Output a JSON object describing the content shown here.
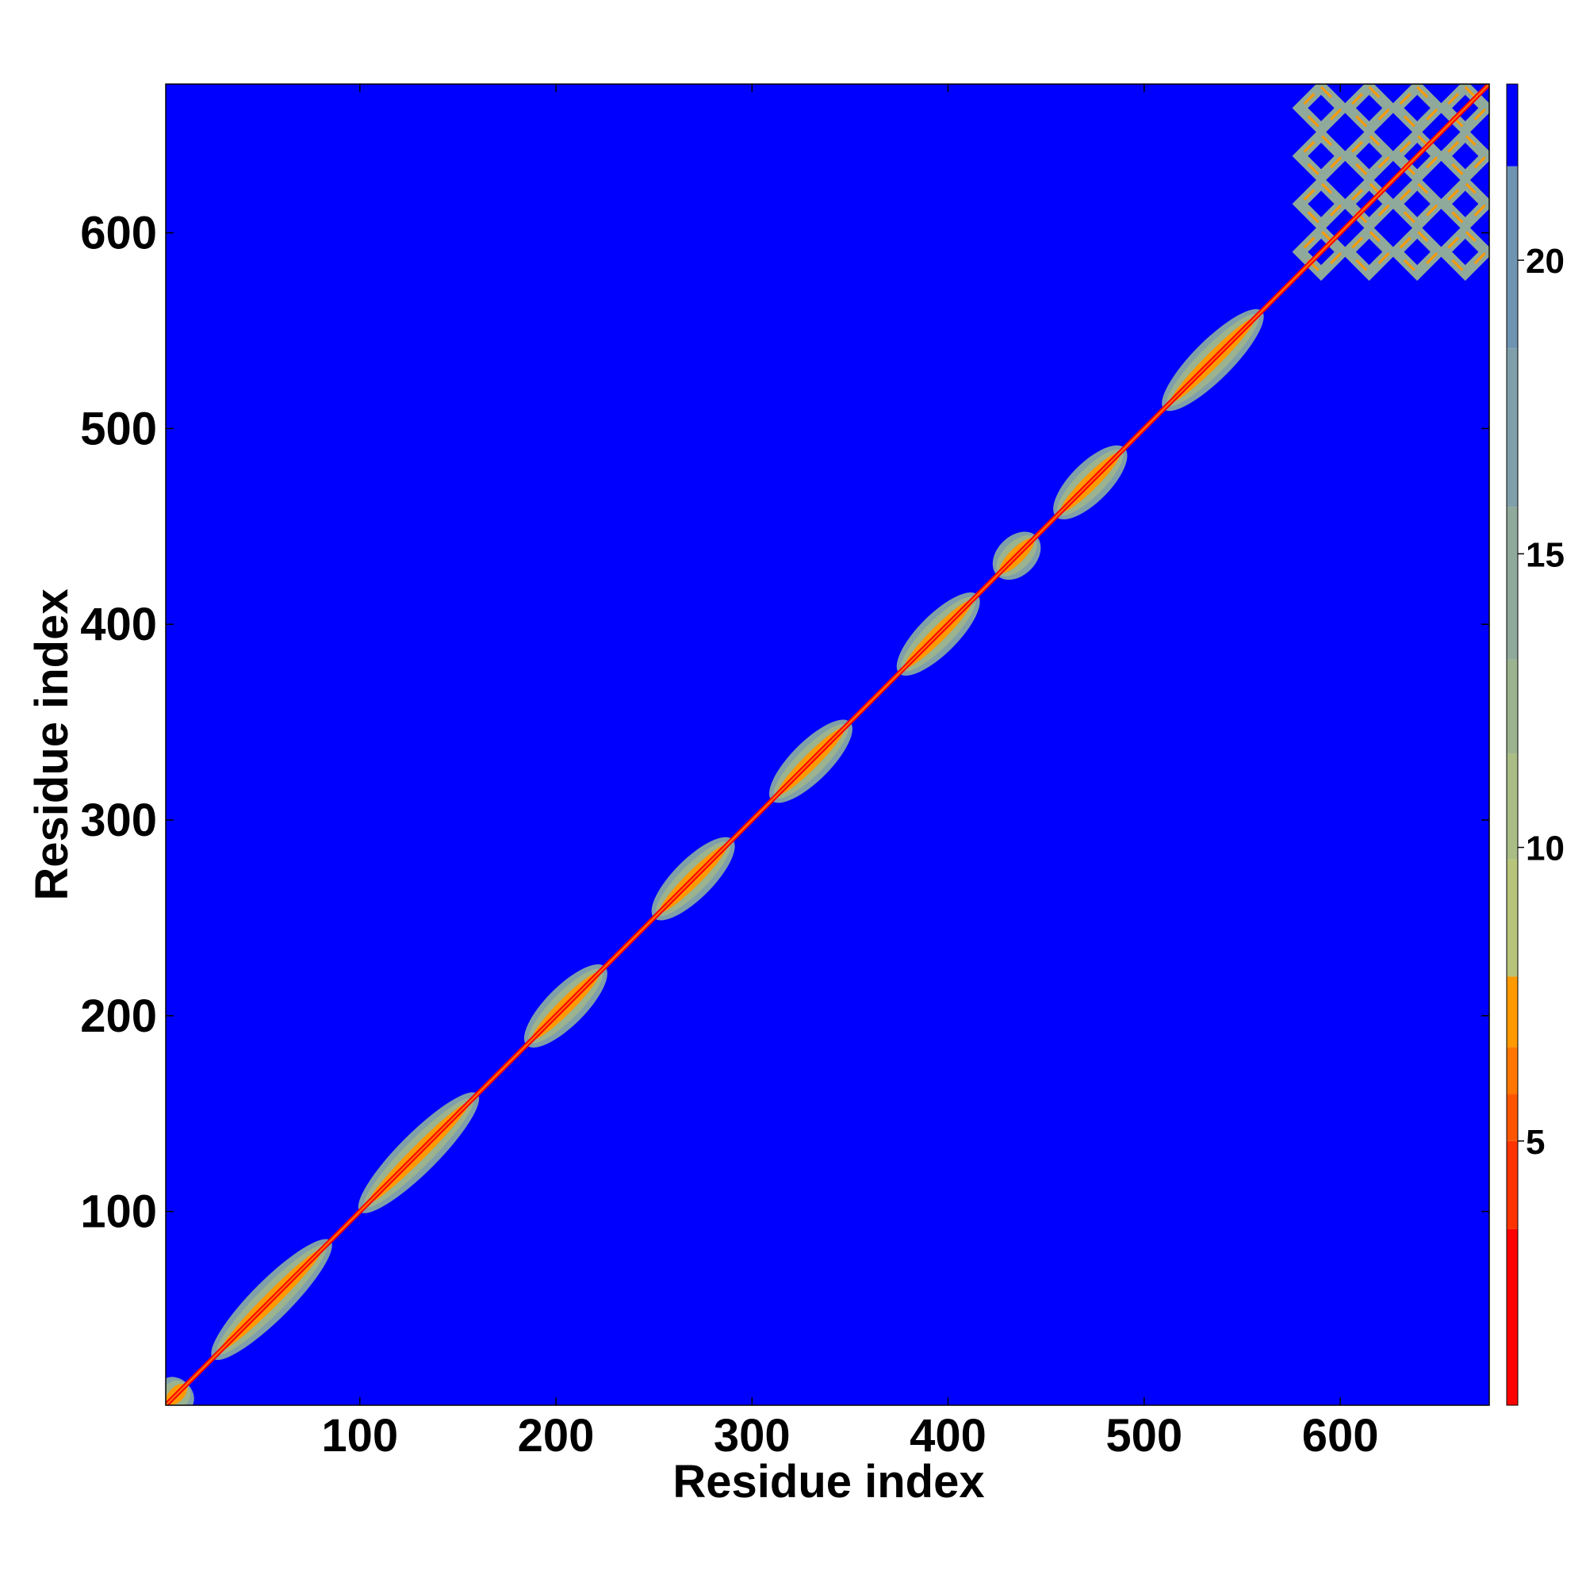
{
  "chart_data": {
    "type": "heatmap",
    "title": "",
    "xlabel": "Residue index",
    "ylabel": "Residue index",
    "xlim": [
      1,
      676
    ],
    "ylim": [
      1,
      676
    ],
    "xticks": [
      100,
      200,
      300,
      400,
      500,
      600
    ],
    "yticks": [
      100,
      200,
      300,
      400,
      500,
      600
    ],
    "grid": false,
    "colorbar": {
      "range": [
        0.5,
        23
      ],
      "ticks": [
        5,
        10,
        15,
        20
      ],
      "bands": [
        {
          "from": 0.5,
          "to": 3.5,
          "color": "#ff0000"
        },
        {
          "from": 3.5,
          "to": 5.0,
          "color": "#ff3300"
        },
        {
          "from": 5.0,
          "to": 5.8,
          "color": "#ff5500"
        },
        {
          "from": 5.8,
          "to": 6.6,
          "color": "#ff7700"
        },
        {
          "from": 6.6,
          "to": 7.8,
          "color": "#ff9900"
        },
        {
          "from": 7.8,
          "to": 9.8,
          "color": "#b8c47a"
        },
        {
          "from": 9.8,
          "to": 11.6,
          "color": "#a9bd85"
        },
        {
          "from": 11.6,
          "to": 13.2,
          "color": "#9bb38e"
        },
        {
          "from": 13.2,
          "to": 15.8,
          "color": "#8fa99a"
        },
        {
          "from": 15.8,
          "to": 18.5,
          "color": "#7f9faa"
        },
        {
          "from": 18.5,
          "to": 21.6,
          "color": "#6f94b2"
        },
        {
          "from": 21.6,
          "to": 23,
          "color": "#0000ff"
        }
      ]
    },
    "background_color": "#0000ff",
    "diagonal_color": "#ff0000",
    "contact_color": "#8fa99a",
    "helix_segments": [
      [
        1,
        12
      ],
      [
        25,
        85
      ],
      [
        100,
        160
      ],
      [
        185,
        225
      ],
      [
        250,
        290
      ],
      [
        310,
        350
      ],
      [
        375,
        415
      ],
      [
        425,
        445
      ],
      [
        455,
        490
      ],
      [
        510,
        560
      ]
    ],
    "grid_block_range": [
      578,
      676
    ]
  }
}
